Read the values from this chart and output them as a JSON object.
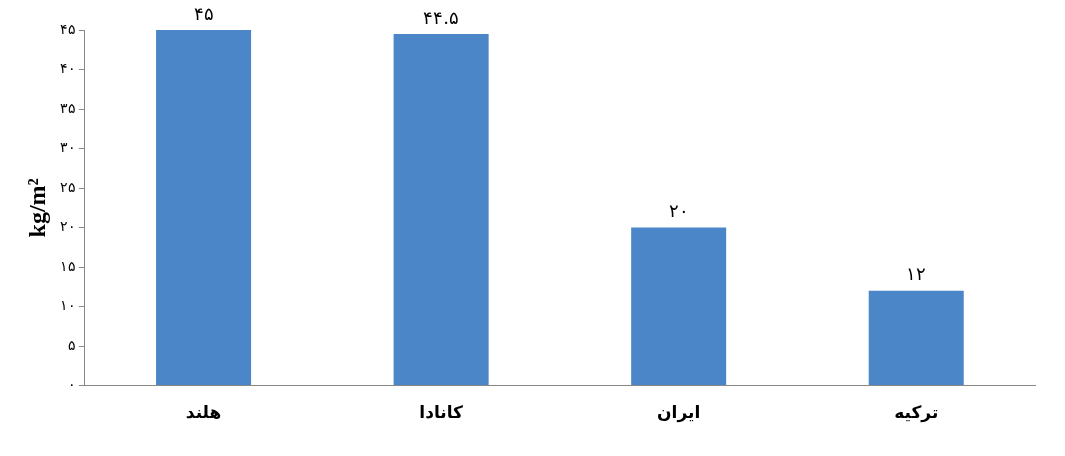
{
  "chart_data": {
    "type": "bar",
    "ylabel": "kg/m²",
    "categories": [
      "هلند",
      "کانادا",
      "ایران",
      "ترکیه"
    ],
    "values": [
      45,
      44.5,
      20,
      12
    ],
    "value_labels": [
      "۴۵",
      "۴۴.۵",
      "۲۰",
      "۱۲"
    ],
    "color": "#4a86c8",
    "ylim": [
      0,
      45
    ],
    "yticks": [
      {
        "value": 0,
        "label": "۰"
      },
      {
        "value": 5,
        "label": "۵"
      },
      {
        "value": 10,
        "label": "۱۰"
      },
      {
        "value": 15,
        "label": "۱۵"
      },
      {
        "value": 20,
        "label": "۲۰"
      },
      {
        "value": 25,
        "label": "۲۵"
      },
      {
        "value": 30,
        "label": "۳۰"
      },
      {
        "value": 35,
        "label": "۳۵"
      },
      {
        "value": 40,
        "label": "۴۰"
      },
      {
        "value": 45,
        "label": "۴۵"
      }
    ],
    "grid": false,
    "legend": false
  }
}
